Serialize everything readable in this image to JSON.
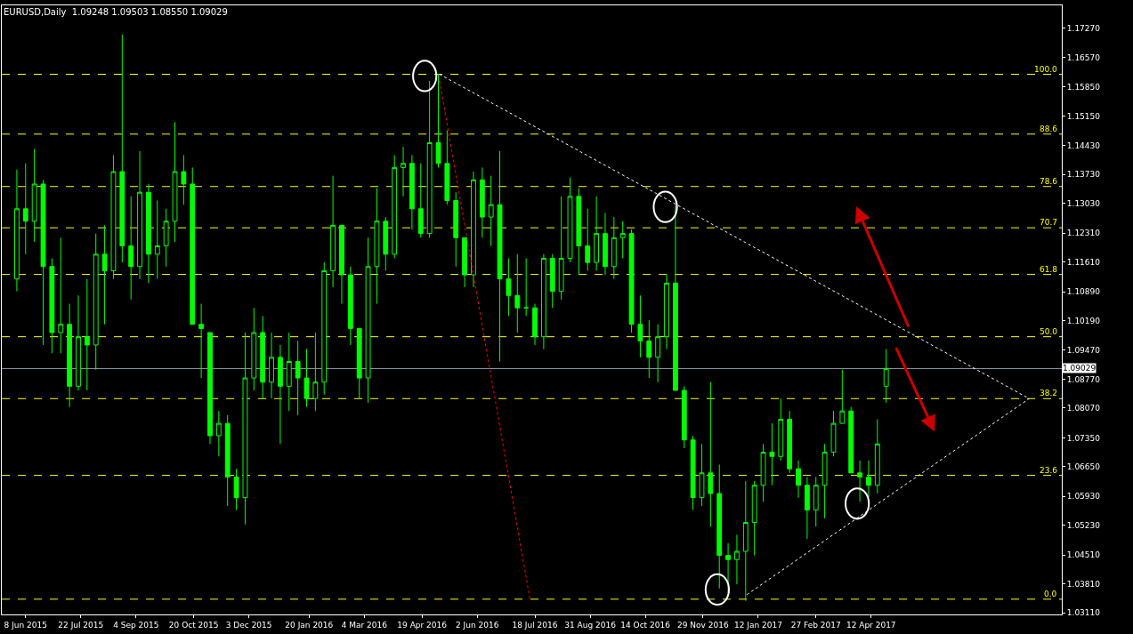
{
  "chart_data": {
    "type": "candlestick",
    "title": "EURUSD,Daily  1.09248 1.09503 1.08550 1.09029",
    "color": "#00ff00",
    "grid": false,
    "x": [
      "2015-06-01",
      "2015-06-08",
      "2015-06-15",
      "2015-06-22",
      "2015-06-29",
      "2015-07-06",
      "2015-07-13",
      "2015-07-20",
      "2015-07-27",
      "2015-08-03",
      "2015-08-10",
      "2015-08-17",
      "2015-08-24",
      "2015-08-31",
      "2015-09-07",
      "2015-09-14",
      "2015-09-21",
      "2015-09-28",
      "2015-10-05",
      "2015-10-12",
      "2015-10-19",
      "2015-10-26",
      "2015-11-02",
      "2015-11-09",
      "2015-11-16",
      "2015-11-23",
      "2015-11-30",
      "2015-12-07",
      "2015-12-14",
      "2015-12-21",
      "2015-12-28",
      "2016-01-04",
      "2016-01-11",
      "2016-01-18",
      "2016-01-25",
      "2016-02-01",
      "2016-02-08",
      "2016-02-15",
      "2016-02-22",
      "2016-02-29",
      "2016-03-07",
      "2016-03-14",
      "2016-03-21",
      "2016-03-28",
      "2016-04-04",
      "2016-04-11",
      "2016-04-18",
      "2016-04-25",
      "2016-05-02",
      "2016-05-09",
      "2016-05-16",
      "2016-05-23",
      "2016-05-30",
      "2016-06-06",
      "2016-06-13",
      "2016-06-20",
      "2016-06-27",
      "2016-07-04",
      "2016-07-11",
      "2016-07-18",
      "2016-07-25",
      "2016-08-01",
      "2016-08-08",
      "2016-08-15",
      "2016-08-22",
      "2016-08-29",
      "2016-09-05",
      "2016-09-12",
      "2016-09-19",
      "2016-09-26",
      "2016-10-03",
      "2016-10-10",
      "2016-10-17",
      "2016-10-24",
      "2016-10-31",
      "2016-11-07",
      "2016-11-14",
      "2016-11-21",
      "2016-11-28",
      "2016-12-05",
      "2016-12-12",
      "2016-12-19",
      "2016-12-26",
      "2017-01-02",
      "2017-01-09",
      "2017-01-16",
      "2017-01-23",
      "2017-01-30",
      "2017-02-06",
      "2017-02-13",
      "2017-02-20",
      "2017-02-27",
      "2017-03-06",
      "2017-03-13",
      "2017-03-20",
      "2017-03-27",
      "2017-04-03",
      "2017-04-10",
      "2017-04-17",
      "2017-04-24"
    ],
    "ohlc": [
      [
        1.112,
        1.1385,
        1.109,
        1.129
      ],
      [
        1.129,
        1.14,
        1.118,
        1.126
      ],
      [
        1.126,
        1.1435,
        1.121,
        1.135
      ],
      [
        1.135,
        1.136,
        1.096,
        1.115
      ],
      [
        1.115,
        1.117,
        1.094,
        1.099
      ],
      [
        1.099,
        1.122,
        1.094,
        1.101
      ],
      [
        1.101,
        1.106,
        1.081,
        1.086
      ],
      [
        1.086,
        1.108,
        1.085,
        1.098
      ],
      [
        1.098,
        1.112,
        1.085,
        1.096
      ],
      [
        1.096,
        1.123,
        1.09,
        1.118
      ],
      [
        1.118,
        1.125,
        1.101,
        1.114
      ],
      [
        1.114,
        1.142,
        1.112,
        1.138
      ],
      [
        1.138,
        1.1712,
        1.116,
        1.12
      ],
      [
        1.12,
        1.132,
        1.107,
        1.115
      ],
      [
        1.115,
        1.143,
        1.112,
        1.133
      ],
      [
        1.133,
        1.135,
        1.111,
        1.118
      ],
      [
        1.118,
        1.131,
        1.112,
        1.12
      ],
      [
        1.12,
        1.129,
        1.115,
        1.126
      ],
      [
        1.126,
        1.15,
        1.121,
        1.138
      ],
      [
        1.138,
        1.142,
        1.13,
        1.135
      ],
      [
        1.135,
        1.139,
        1.101,
        1.101
      ],
      [
        1.101,
        1.106,
        1.088,
        1.1
      ],
      [
        1.099,
        1.099,
        1.072,
        1.074
      ],
      [
        1.074,
        1.08,
        1.069,
        1.077
      ],
      [
        1.077,
        1.079,
        1.057,
        1.064
      ],
      [
        1.064,
        1.066,
        1.056,
        1.059
      ],
      [
        1.059,
        1.099,
        1.0525,
        1.088
      ],
      [
        1.088,
        1.105,
        1.085,
        1.099
      ],
      [
        1.099,
        1.103,
        1.083,
        1.087
      ],
      [
        1.087,
        1.099,
        1.083,
        1.093
      ],
      [
        1.093,
        1.096,
        1.072,
        1.086
      ],
      [
        1.086,
        1.099,
        1.08,
        1.092
      ],
      [
        1.092,
        1.097,
        1.079,
        1.088
      ],
      [
        1.088,
        1.095,
        1.081,
        1.083
      ],
      [
        1.083,
        1.099,
        1.08,
        1.087
      ],
      [
        1.087,
        1.116,
        1.084,
        1.114
      ],
      [
        1.114,
        1.137,
        1.11,
        1.125
      ],
      [
        1.125,
        1.125,
        1.106,
        1.113
      ],
      [
        1.113,
        1.115,
        1.096,
        1.1
      ],
      [
        1.1,
        1.1,
        1.083,
        1.088
      ],
      [
        1.088,
        1.122,
        1.082,
        1.115
      ],
      [
        1.115,
        1.134,
        1.106,
        1.126
      ],
      [
        1.126,
        1.127,
        1.114,
        1.118
      ],
      [
        1.118,
        1.142,
        1.117,
        1.139
      ],
      [
        1.139,
        1.144,
        1.132,
        1.14
      ],
      [
        1.14,
        1.142,
        1.124,
        1.129
      ],
      [
        1.129,
        1.14,
        1.122,
        1.123
      ],
      [
        1.123,
        1.16,
        1.122,
        1.145
      ],
      [
        1.145,
        1.1616,
        1.139,
        1.14
      ],
      [
        1.14,
        1.148,
        1.13,
        1.131
      ],
      [
        1.131,
        1.133,
        1.115,
        1.122
      ],
      [
        1.122,
        1.122,
        1.11,
        1.113
      ],
      [
        1.113,
        1.138,
        1.11,
        1.136
      ],
      [
        1.136,
        1.139,
        1.122,
        1.127
      ],
      [
        1.127,
        1.137,
        1.12,
        1.13
      ],
      [
        1.13,
        1.143,
        1.092,
        1.112
      ],
      [
        1.112,
        1.117,
        1.103,
        1.108
      ],
      [
        1.108,
        1.118,
        1.099,
        1.105
      ],
      [
        1.105,
        1.117,
        1.103,
        1.105
      ],
      [
        1.105,
        1.106,
        1.096,
        1.098
      ],
      [
        1.098,
        1.118,
        1.095,
        1.117
      ],
      [
        1.117,
        1.118,
        1.105,
        1.109
      ],
      [
        1.109,
        1.132,
        1.107,
        1.117
      ],
      [
        1.117,
        1.1366,
        1.116,
        1.132
      ],
      [
        1.132,
        1.134,
        1.113,
        1.12
      ],
      [
        1.12,
        1.129,
        1.114,
        1.116
      ],
      [
        1.116,
        1.132,
        1.114,
        1.123
      ],
      [
        1.123,
        1.128,
        1.113,
        1.115
      ],
      [
        1.115,
        1.127,
        1.112,
        1.122
      ],
      [
        1.122,
        1.126,
        1.117,
        1.123
      ],
      [
        1.123,
        1.124,
        1.099,
        1.101
      ],
      [
        1.101,
        1.108,
        1.093,
        1.097
      ],
      [
        1.097,
        1.102,
        1.088,
        1.093
      ],
      [
        1.093,
        1.101,
        1.087,
        1.098
      ],
      [
        1.098,
        1.113,
        1.095,
        1.111
      ],
      [
        1.111,
        1.1299,
        1.085,
        1.085
      ],
      [
        1.085,
        1.086,
        1.071,
        1.073
      ],
      [
        1.073,
        1.074,
        1.056,
        1.059
      ],
      [
        1.059,
        1.072,
        1.057,
        1.065
      ],
      [
        1.065,
        1.087,
        1.052,
        1.06
      ],
      [
        1.06,
        1.067,
        1.037,
        1.045
      ],
      [
        1.045,
        1.048,
        1.036,
        1.044
      ],
      [
        1.044,
        1.05,
        1.038,
        1.046
      ],
      [
        1.046,
        1.063,
        1.034,
        1.053
      ],
      [
        1.053,
        1.063,
        1.045,
        1.062
      ],
      [
        1.062,
        1.072,
        1.058,
        1.07
      ],
      [
        1.07,
        1.077,
        1.062,
        1.069
      ],
      [
        1.069,
        1.083,
        1.068,
        1.078
      ],
      [
        1.078,
        1.08,
        1.065,
        1.066
      ],
      [
        1.066,
        1.068,
        1.059,
        1.062
      ],
      [
        1.062,
        1.064,
        1.049,
        1.056
      ],
      [
        1.056,
        1.064,
        1.052,
        1.062
      ],
      [
        1.062,
        1.072,
        1.054,
        1.07
      ],
      [
        1.07,
        1.08,
        1.069,
        1.077
      ],
      [
        1.077,
        1.09,
        1.077,
        1.08
      ],
      [
        1.08,
        1.081,
        1.065,
        1.065
      ],
      [
        1.065,
        1.068,
        1.058,
        1.064
      ],
      [
        1.064,
        1.068,
        1.059,
        1.062
      ],
      [
        1.062,
        1.078,
        1.06,
        1.072
      ],
      [
        1.086,
        1.095,
        1.082,
        1.0903
      ]
    ],
    "series": [
      {
        "type": "line",
        "x": [
          "2016-05-03",
          "2017-08-16"
        ],
        "values": [
          1.1616,
          1.083
        ],
        "color": "#ffffff",
        "line_style": "dotted"
      },
      {
        "type": "line",
        "x": [
          "2017-01-03",
          "2017-08-16"
        ],
        "values": [
          1.0355,
          1.083
        ],
        "color": "#ffffff",
        "line_style": "dotted"
      },
      {
        "type": "line",
        "x": [
          "2016-05-03",
          "2016-07-14"
        ],
        "values": [
          1.16,
          1.0344
        ],
        "color": "#ff0000",
        "line_style": "dotted"
      }
    ],
    "xlim": [
      "2015-05-20",
      "2017-09-11"
    ],
    "xticks": [
      {
        "value": "2015-06-08",
        "label": "8 Jun 2015"
      },
      {
        "value": "2015-07-22",
        "label": "22 Jul 2015"
      },
      {
        "value": "2015-09-04",
        "label": "4 Sep 2015"
      },
      {
        "value": "2015-10-20",
        "label": "20 Oct 2015"
      },
      {
        "value": "2015-12-03",
        "label": "3 Dec 2015"
      },
      {
        "value": "2016-01-20",
        "label": "20 Jan 2016"
      },
      {
        "value": "2016-03-04",
        "label": "4 Mar 2016"
      },
      {
        "value": "2016-04-19",
        "label": "19 Apr 2016"
      },
      {
        "value": "2016-06-02",
        "label": "2 Jun 2016"
      },
      {
        "value": "2016-07-18",
        "label": "18 Jul 2016"
      },
      {
        "value": "2016-08-31",
        "label": "31 Aug 2016"
      },
      {
        "value": "2016-10-14",
        "label": "14 Oct 2016"
      },
      {
        "value": "2016-11-29",
        "label": "29 Nov 2016"
      },
      {
        "value": "2017-01-12",
        "label": "12 Jan 2017"
      },
      {
        "value": "2017-02-27",
        "label": "27 Feb 2017"
      },
      {
        "value": "2017-04-12",
        "label": "12 Apr 2017"
      }
    ],
    "ylim": [
      1.0307,
      1.1783
    ],
    "yticks": [
      {
        "value": 1.0311,
        "label": "1.03110"
      },
      {
        "value": 1.0381,
        "label": "1.03810"
      },
      {
        "value": 1.0451,
        "label": "1.04510"
      },
      {
        "value": 1.0523,
        "label": "1.05230"
      },
      {
        "value": 1.0593,
        "label": "1.05930"
      },
      {
        "value": 1.0665,
        "label": "1.06650"
      },
      {
        "value": 1.0735,
        "label": "1.07350"
      },
      {
        "value": 1.0807,
        "label": "1.08070"
      },
      {
        "value": 1.0877,
        "label": "1.08770"
      },
      {
        "value": 1.0947,
        "label": "1.09470"
      },
      {
        "value": 1.1019,
        "label": "1.10190"
      },
      {
        "value": 1.1089,
        "label": "1.10890"
      },
      {
        "value": 1.1161,
        "label": "1.11610"
      },
      {
        "value": 1.1231,
        "label": "1.12310"
      },
      {
        "value": 1.1303,
        "label": "1.13030"
      },
      {
        "value": 1.1373,
        "label": "1.13730"
      },
      {
        "value": 1.1443,
        "label": "1.14430"
      },
      {
        "value": 1.1515,
        "label": "1.15150"
      },
      {
        "value": 1.1585,
        "label": "1.15850"
      },
      {
        "value": 1.1657,
        "label": "1.16570"
      },
      {
        "value": 1.1727,
        "label": "1.17270"
      }
    ],
    "ref_lines": [
      {
        "axis": "y",
        "value": 1.1616,
        "color": "#ffff00",
        "line_style": "dashed"
      },
      {
        "axis": "y",
        "value": 1.1471,
        "color": "#ffff00",
        "line_style": "dashed"
      },
      {
        "axis": "y",
        "value": 1.1344,
        "color": "#ffff00",
        "line_style": "dashed"
      },
      {
        "axis": "y",
        "value": 1.1244,
        "color": "#ffff00",
        "line_style": "dashed"
      },
      {
        "axis": "y",
        "value": 1.1131,
        "color": "#ffff00",
        "line_style": "dashed"
      },
      {
        "axis": "y",
        "value": 1.098,
        "color": "#ffff00",
        "line_style": "dashed"
      },
      {
        "axis": "y",
        "value": 1.083,
        "color": "#ffff00",
        "line_style": "dashed"
      },
      {
        "axis": "y",
        "value": 1.0644,
        "color": "#ffff00",
        "line_style": "dashed"
      },
      {
        "axis": "y",
        "value": 1.0344,
        "color": "#ffff00",
        "line_style": "dashed"
      },
      {
        "axis": "y",
        "value": 1.09029,
        "label": "1.09029",
        "color": "#8a9aa8",
        "line_style": "solid"
      }
    ],
    "annotations": [
      {
        "text": "100.0",
        "x": "2017-09-08",
        "y": 1.1616
      },
      {
        "text": "88.6",
        "x": "2017-09-08",
        "y": 1.1471
      },
      {
        "text": "78.6",
        "x": "2017-09-08",
        "y": 1.1344
      },
      {
        "text": "70.7",
        "x": "2017-09-08",
        "y": 1.1244
      },
      {
        "text": "61.8",
        "x": "2017-09-08",
        "y": 1.1131
      },
      {
        "text": "50.0",
        "x": "2017-09-08",
        "y": 1.098
      },
      {
        "text": "38.2",
        "x": "2017-09-08",
        "y": 1.083
      },
      {
        "text": "23.6",
        "x": "2017-09-08",
        "y": 1.0644
      },
      {
        "text": "0.0",
        "x": "2017-09-08",
        "y": 1.0344
      }
    ]
  }
}
